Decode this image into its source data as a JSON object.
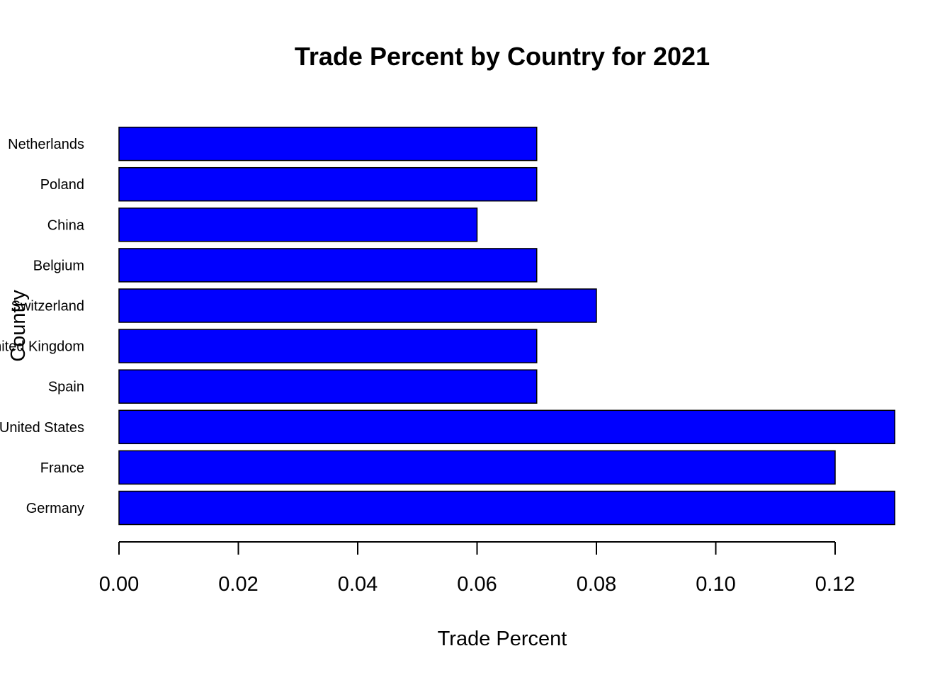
{
  "chart_data": {
    "type": "bar",
    "orientation": "horizontal",
    "title": "Trade Percent by Country for 2021",
    "xlabel": "Trade Percent",
    "ylabel": "Country",
    "categories": [
      "Germany",
      "France",
      "United States",
      "Spain",
      "United Kingdom",
      "Switzerland",
      "Belgium",
      "China",
      "Poland",
      "Netherlands"
    ],
    "values": [
      0.13,
      0.12,
      0.13,
      0.07,
      0.07,
      0.08,
      0.07,
      0.06,
      0.07,
      0.07
    ],
    "xlim": [
      0,
      0.13
    ],
    "xticks": [
      "0.00",
      "0.02",
      "0.04",
      "0.06",
      "0.08",
      "0.10",
      "0.12"
    ],
    "grid": false,
    "legend": "none",
    "bar_color": "#0000ff",
    "bar_border_color": "#000000"
  }
}
